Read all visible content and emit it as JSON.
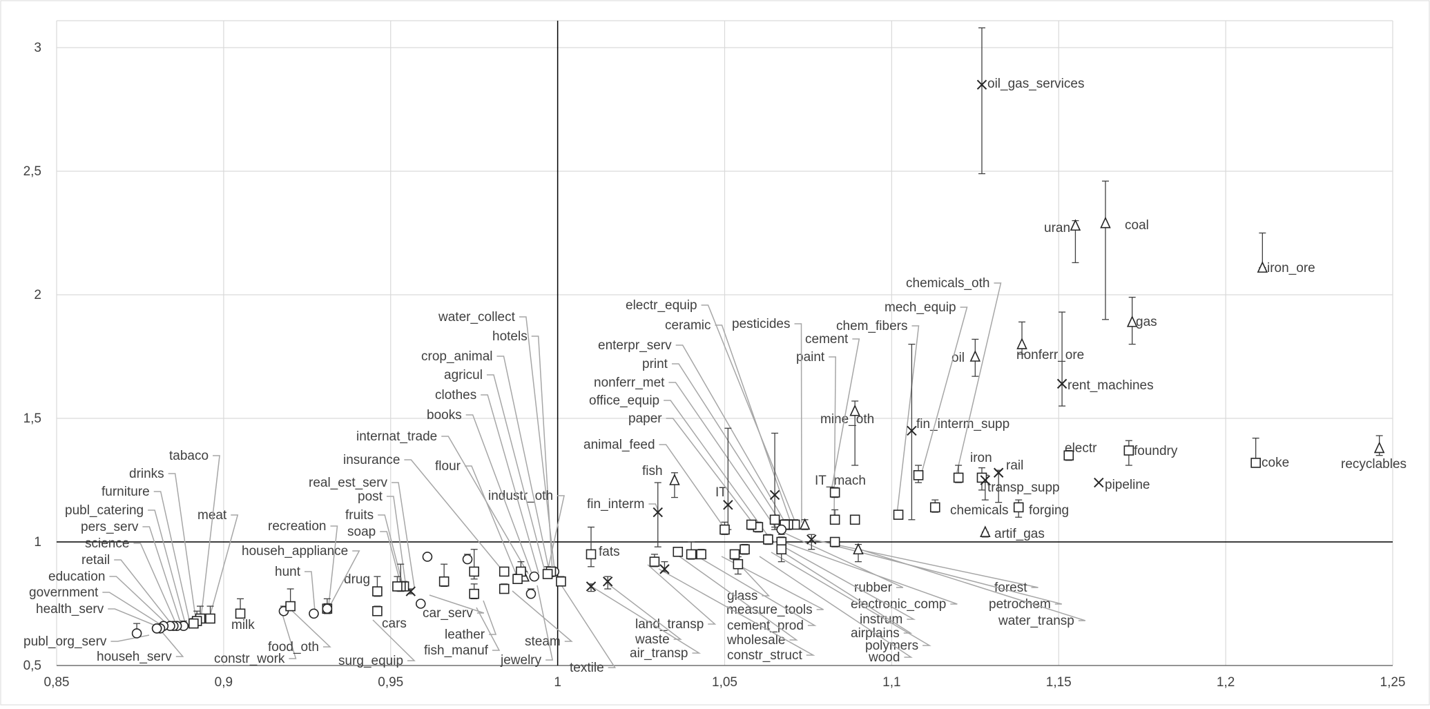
{
  "chart_data": {
    "type": "scatter",
    "title": "",
    "xlabel": "",
    "ylabel": "",
    "xlim": [
      0.85,
      1.25
    ],
    "ylim": [
      0.5,
      3.1
    ],
    "xticks": [
      "0,85",
      "0,9",
      "0,95",
      "1",
      "1,05",
      "1,1",
      "1,15",
      "1,2",
      "1,25"
    ],
    "yticks": [
      "0,5",
      "1",
      "1,5",
      "2",
      "2,5",
      "3"
    ],
    "grid": true,
    "reference_lines": {
      "x": 1,
      "y": 1
    },
    "points": [
      {
        "name": "oil_gas_services",
        "x": 1.127,
        "y": 2.85,
        "marker": "x",
        "err_low": 2.49,
        "err_high": 3.08
      },
      {
        "name": "uran",
        "x": 1.155,
        "y": 2.28,
        "marker": "triangle",
        "err_low": 2.13,
        "err_high": 2.3
      },
      {
        "name": "coal",
        "x": 1.164,
        "y": 2.29,
        "marker": "triangle",
        "err_low": 1.9,
        "err_high": 2.46
      },
      {
        "name": "iron_ore",
        "x": 1.211,
        "y": 2.11,
        "marker": "triangle",
        "err_low": 2.11,
        "err_high": 2.25
      },
      {
        "name": "gas",
        "x": 1.172,
        "y": 1.89,
        "marker": "triangle",
        "err_low": 1.8,
        "err_high": 1.99
      },
      {
        "name": "nonferr_ore",
        "x": 1.139,
        "y": 1.8,
        "marker": "triangle",
        "err_low": 1.76,
        "err_high": 1.89
      },
      {
        "name": "oil",
        "x": 1.125,
        "y": 1.75,
        "marker": "triangle",
        "err_low": 1.67,
        "err_high": 1.82
      },
      {
        "name": "rent_machines",
        "x": 1.151,
        "y": 1.64,
        "marker": "x",
        "err_low": 1.55,
        "err_high": 1.93
      },
      {
        "name": "mine_oth",
        "x": 1.089,
        "y": 1.53,
        "marker": "triangle",
        "err_low": 1.31,
        "err_high": 1.57
      },
      {
        "name": "fin_interm_supp",
        "x": 1.106,
        "y": 1.45,
        "marker": "x",
        "err_low": 1.09,
        "err_high": 1.8
      },
      {
        "name": "electr",
        "x": 1.153,
        "y": 1.35,
        "marker": "square",
        "err_low": 1.33,
        "err_high": 1.37
      },
      {
        "name": "foundry",
        "x": 1.171,
        "y": 1.37,
        "marker": "square",
        "err_low": 1.31,
        "err_high": 1.41
      },
      {
        "name": "coke",
        "x": 1.209,
        "y": 1.32,
        "marker": "square",
        "err_low": 1.32,
        "err_high": 1.42
      },
      {
        "name": "recyclables",
        "x": 1.246,
        "y": 1.38,
        "marker": "triangle",
        "err_low": 1.35,
        "err_high": 1.43
      },
      {
        "name": "rail",
        "x": 1.132,
        "y": 1.28,
        "marker": "x",
        "err_low": 1.16,
        "err_high": 1.29
      },
      {
        "name": "pipeline",
        "x": 1.162,
        "y": 1.24,
        "marker": "x",
        "err_low": 1.24,
        "err_high": 1.24
      },
      {
        "name": "iron",
        "x": 1.127,
        "y": 1.26,
        "marker": "square",
        "err_low": 1.21,
        "err_high": 1.3
      },
      {
        "name": "transp_supp",
        "x": 1.128,
        "y": 1.25,
        "marker": "x",
        "err_low": 1.17,
        "err_high": 1.27
      },
      {
        "name": "chemicals",
        "x": 1.113,
        "y": 1.14,
        "marker": "square",
        "err_low": 1.12,
        "err_high": 1.17
      },
      {
        "name": "forging",
        "x": 1.138,
        "y": 1.14,
        "marker": "square",
        "err_low": 1.1,
        "err_high": 1.17
      },
      {
        "name": "artif_gas",
        "x": 1.128,
        "y": 1.04,
        "marker": "triangle",
        "err_low": 1.02,
        "err_high": 1.04
      },
      {
        "name": "chemicals_oth",
        "x": 1.12,
        "y": 1.26,
        "marker": "square",
        "err_low": 1.24,
        "err_high": 1.31
      },
      {
        "name": "mech_equip",
        "x": 1.108,
        "y": 1.27,
        "marker": "square",
        "err_low": 1.24,
        "err_high": 1.31
      },
      {
        "name": "chem_fibers",
        "x": 1.102,
        "y": 1.11,
        "marker": "square",
        "err_low": 1.1,
        "err_high": 1.12
      },
      {
        "name": "cement",
        "x": 1.083,
        "y": 1.2,
        "marker": "square",
        "err_low": 1.18,
        "err_high": 1.22
      },
      {
        "name": "IT_mach",
        "x": 1.083,
        "y": 1.09,
        "marker": "square",
        "err_low": 1.08,
        "err_high": 1.13
      },
      {
        "name": "paint",
        "x": 1.089,
        "y": 1.09,
        "marker": "square",
        "err_low": 1.08,
        "err_high": 1.1
      },
      {
        "name": "pesticides",
        "x": 1.065,
        "y": 1.19,
        "marker": "x",
        "err_low": 1.05,
        "err_high": 1.44
      },
      {
        "name": "IT",
        "x": 1.051,
        "y": 1.15,
        "marker": "x",
        "err_low": 1.05,
        "err_high": 1.46
      },
      {
        "name": "fish",
        "x": 1.035,
        "y": 1.25,
        "marker": "triangle",
        "err_low": 1.18,
        "err_high": 1.28
      },
      {
        "name": "fin_interm",
        "x": 1.03,
        "y": 1.12,
        "marker": "x",
        "err_low": 0.98,
        "err_high": 1.24
      },
      {
        "name": "animal_feed",
        "x": 1.05,
        "y": 1.05,
        "marker": "square",
        "err_low": 1.03,
        "err_high": 1.08
      },
      {
        "name": "electr_equip",
        "x": 1.074,
        "y": 1.07,
        "marker": "triangle",
        "err_low": 1.05,
        "err_high": 1.09
      },
      {
        "name": "ceramic",
        "x": 1.071,
        "y": 1.07,
        "marker": "square",
        "err_low": 1.06,
        "err_high": 1.09
      },
      {
        "name": "enterpr_serv",
        "x": 1.069,
        "y": 1.07,
        "marker": "square",
        "err_low": 1.05,
        "err_high": 1.09
      },
      {
        "name": "print",
        "x": 1.068,
        "y": 1.07,
        "marker": "square",
        "err_low": 1.06,
        "err_high": 1.09
      },
      {
        "name": "nonferr_met",
        "x": 1.065,
        "y": 1.09,
        "marker": "square",
        "err_low": 1.06,
        "err_high": 1.1
      },
      {
        "name": "office_equip",
        "x": 1.06,
        "y": 1.06,
        "marker": "square",
        "err_low": 1.04,
        "err_high": 1.08
      },
      {
        "name": "paper",
        "x": 1.058,
        "y": 1.07,
        "marker": "square",
        "err_low": 1.05,
        "err_high": 1.08
      },
      {
        "name": "fats",
        "x": 1.01,
        "y": 0.95,
        "marker": "square",
        "err_low": 0.9,
        "err_high": 1.06
      },
      {
        "name": "forest",
        "x": 1.076,
        "y": 1.01,
        "marker": "x",
        "err_low": 0.97,
        "err_high": 1.03
      },
      {
        "name": "petrochem",
        "x": 1.083,
        "y": 1.0,
        "marker": "square",
        "err_low": 0.98,
        "err_high": 1.01
      },
      {
        "name": "water_transp",
        "x": 1.09,
        "y": 0.97,
        "marker": "triangle",
        "err_low": 0.92,
        "err_high": 0.99
      },
      {
        "name": "rubber",
        "x": 1.067,
        "y": 1.05,
        "marker": "circle",
        "err_low": 1.03,
        "err_high": 1.07
      },
      {
        "name": "electronic_comp",
        "x": 1.067,
        "y": 1.0,
        "marker": "square",
        "err_low": 0.98,
        "err_high": 1.02
      },
      {
        "name": "instrum",
        "x": 1.063,
        "y": 1.01,
        "marker": "square",
        "err_low": 0.99,
        "err_high": 1.03
      },
      {
        "name": "airplains",
        "x": 1.067,
        "y": 0.97,
        "marker": "square",
        "err_low": 0.92,
        "err_high": 1.0
      },
      {
        "name": "polymers",
        "x": 1.056,
        "y": 0.97,
        "marker": "square",
        "err_low": 0.95,
        "err_high": 0.99
      },
      {
        "name": "wood",
        "x": 1.053,
        "y": 0.95,
        "marker": "square",
        "err_low": 0.93,
        "err_high": 0.96
      },
      {
        "name": "glass",
        "x": 1.054,
        "y": 0.91,
        "marker": "square",
        "err_low": 0.87,
        "err_high": 0.94
      },
      {
        "name": "measure_tools",
        "x": 1.043,
        "y": 0.95,
        "marker": "square",
        "err_low": 0.94,
        "err_high": 0.97
      },
      {
        "name": "cement_prod",
        "x": 1.04,
        "y": 0.95,
        "marker": "square",
        "err_low": 0.93,
        "err_high": 1.0
      },
      {
        "name": "wholesale",
        "x": 1.036,
        "y": 0.96,
        "marker": "square",
        "err_low": 0.95,
        "err_high": 0.97
      },
      {
        "name": "constr_struct",
        "x": 1.032,
        "y": 0.89,
        "marker": "x",
        "err_low": 0.88,
        "err_high": 0.92
      },
      {
        "name": "land_transp",
        "x": 1.029,
        "y": 0.92,
        "marker": "square",
        "err_low": 0.9,
        "err_high": 0.95
      },
      {
        "name": "waste",
        "x": 1.015,
        "y": 0.84,
        "marker": "x",
        "err_low": 0.81,
        "err_high": 0.86
      },
      {
        "name": "air_transp",
        "x": 1.01,
        "y": 0.82,
        "marker": "x",
        "err_low": 0.8,
        "err_high": 0.83
      },
      {
        "name": "textile",
        "x": 1.001,
        "y": 0.84,
        "marker": "square",
        "err_low": 0.83,
        "err_high": 0.86
      },
      {
        "name": "water_collect",
        "x": 0.999,
        "y": 0.88,
        "marker": "circle",
        "err_low": 0.87,
        "err_high": 0.89
      },
      {
        "name": "hotels",
        "x": 0.998,
        "y": 0.88,
        "marker": "square",
        "err_low": 0.86,
        "err_high": 0.89
      },
      {
        "name": "industr_oth",
        "x": 0.997,
        "y": 0.87,
        "marker": "square",
        "err_low": 0.86,
        "err_high": 0.9
      },
      {
        "name": "crop_animal",
        "x": 0.993,
        "y": 0.86,
        "marker": "circle",
        "err_low": 0.85,
        "err_high": 0.87
      },
      {
        "name": "agricul",
        "x": 0.99,
        "y": 0.86,
        "marker": "triangle",
        "err_low": 0.85,
        "err_high": 0.88
      },
      {
        "name": "clothes",
        "x": 0.989,
        "y": 0.88,
        "marker": "square",
        "err_low": 0.87,
        "err_high": 0.92
      },
      {
        "name": "books",
        "x": 0.984,
        "y": 0.88,
        "marker": "square",
        "err_low": 0.87,
        "err_high": 0.89
      },
      {
        "name": "steam",
        "x": 0.992,
        "y": 0.79,
        "marker": "circle",
        "err_low": 0.78,
        "err_high": 0.81
      },
      {
        "name": "jewelry",
        "x": 0.988,
        "y": 0.85,
        "marker": "square",
        "err_low": 0.84,
        "err_high": 0.87
      },
      {
        "name": "leather",
        "x": 0.984,
        "y": 0.81,
        "marker": "square",
        "err_low": 0.8,
        "err_high": 0.83
      },
      {
        "name": "flour",
        "x": 0.975,
        "y": 0.88,
        "marker": "square",
        "err_low": 0.85,
        "err_high": 0.97
      },
      {
        "name": "internat_trade",
        "x": 0.973,
        "y": 0.93,
        "marker": "circle",
        "err_low": 0.92,
        "err_high": 0.95
      },
      {
        "name": "fish_manuf",
        "x": 0.975,
        "y": 0.79,
        "marker": "square",
        "err_low": 0.77,
        "err_high": 0.83
      },
      {
        "name": "insurance",
        "x": 0.961,
        "y": 0.94,
        "marker": "circle",
        "err_low": 0.94,
        "err_high": 0.95
      },
      {
        "name": "car_serv",
        "x": 0.966,
        "y": 0.84,
        "marker": "square",
        "err_low": 0.82,
        "err_high": 0.91
      },
      {
        "name": "cars",
        "x": 0.959,
        "y": 0.75,
        "marker": "circle",
        "err_low": 0.74,
        "err_high": 0.76
      },
      {
        "name": "real_est_serv",
        "x": 0.956,
        "y": 0.8,
        "marker": "x",
        "err_low": 0.79,
        "err_high": 0.81
      },
      {
        "name": "post",
        "x": 0.954,
        "y": 0.82,
        "marker": "square",
        "err_low": 0.81,
        "err_high": 0.84
      },
      {
        "name": "fruits",
        "x": 0.953,
        "y": 0.82,
        "marker": "square",
        "err_low": 0.8,
        "err_high": 0.91
      },
      {
        "name": "soap",
        "x": 0.952,
        "y": 0.82,
        "marker": "square",
        "err_low": 0.81,
        "err_high": 0.86
      },
      {
        "name": "drug",
        "x": 0.946,
        "y": 0.8,
        "marker": "square",
        "err_low": 0.78,
        "err_high": 0.86
      },
      {
        "name": "surg_equip",
        "x": 0.946,
        "y": 0.72,
        "marker": "square",
        "err_low": 0.71,
        "err_high": 0.74
      },
      {
        "name": "househ_appliance",
        "x": 0.931,
        "y": 0.73,
        "marker": "square",
        "err_low": 0.71,
        "err_high": 0.77
      },
      {
        "name": "recreation",
        "x": 0.931,
        "y": 0.73,
        "marker": "circle",
        "err_low": 0.72,
        "err_high": 0.75
      },
      {
        "name": "hunt",
        "x": 0.927,
        "y": 0.71,
        "marker": "circle",
        "err_low": 0.71,
        "err_high": 0.72
      },
      {
        "name": "constr_work",
        "x": 0.918,
        "y": 0.72,
        "marker": "circle",
        "err_low": 0.71,
        "err_high": 0.74
      },
      {
        "name": "food_oth",
        "x": 0.92,
        "y": 0.74,
        "marker": "square",
        "err_low": 0.73,
        "err_high": 0.81
      },
      {
        "name": "milk",
        "x": 0.905,
        "y": 0.71,
        "marker": "square",
        "err_low": 0.7,
        "err_high": 0.77
      },
      {
        "name": "meat",
        "x": 0.896,
        "y": 0.69,
        "marker": "square",
        "err_low": 0.68,
        "err_high": 0.74
      },
      {
        "name": "tabaco",
        "x": 0.893,
        "y": 0.69,
        "marker": "square",
        "err_low": 0.68,
        "err_high": 0.74
      },
      {
        "name": "drinks",
        "x": 0.892,
        "y": 0.68,
        "marker": "square",
        "err_low": 0.67,
        "err_high": 0.72
      },
      {
        "name": "furniture",
        "x": 0.891,
        "y": 0.67,
        "marker": "square",
        "err_low": 0.66,
        "err_high": 0.69
      },
      {
        "name": "publ_catering",
        "x": 0.888,
        "y": 0.66,
        "marker": "circle",
        "err_low": 0.65,
        "err_high": 0.68
      },
      {
        "name": "pers_serv",
        "x": 0.886,
        "y": 0.66,
        "marker": "circle",
        "err_low": 0.65,
        "err_high": 0.67
      },
      {
        "name": "science",
        "x": 0.885,
        "y": 0.66,
        "marker": "circle",
        "err_low": 0.65,
        "err_high": 0.67
      },
      {
        "name": "retail",
        "x": 0.884,
        "y": 0.66,
        "marker": "circle",
        "err_low": 0.65,
        "err_high": 0.67
      },
      {
        "name": "education",
        "x": 0.882,
        "y": 0.66,
        "marker": "circle",
        "err_low": 0.65,
        "err_high": 0.67
      },
      {
        "name": "government",
        "x": 0.881,
        "y": 0.65,
        "marker": "circle",
        "err_low": 0.64,
        "err_high": 0.66
      },
      {
        "name": "health_serv",
        "x": 0.88,
        "y": 0.65,
        "marker": "circle",
        "err_low": 0.64,
        "err_high": 0.66
      },
      {
        "name": "househ_serv",
        "x": 0.88,
        "y": 0.65,
        "marker": "circle",
        "err_low": 0.64,
        "err_high": 0.66
      },
      {
        "name": "publ_org_serv",
        "x": 0.874,
        "y": 0.63,
        "marker": "circle",
        "err_low": 0.62,
        "err_high": 0.67
      }
    ]
  }
}
